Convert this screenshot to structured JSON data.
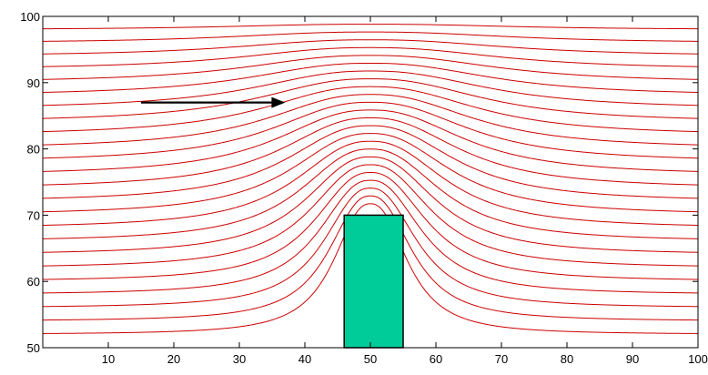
{
  "chart_data": {
    "type": "line",
    "title": "",
    "xlabel": "",
    "ylabel": "",
    "xlim": [
      0,
      100
    ],
    "ylim": [
      50,
      100
    ],
    "x_ticks": [
      10,
      20,
      30,
      40,
      50,
      60,
      70,
      80,
      90,
      100
    ],
    "y_ticks": [
      50,
      60,
      70,
      80,
      90,
      100
    ],
    "grid": false,
    "legend": "none",
    "series": [
      {
        "kind": "streamlines",
        "color": "#cc0000",
        "upstream_y": [
          52,
          54,
          56,
          58,
          60,
          62,
          64,
          66,
          68,
          70,
          72,
          74,
          76,
          78,
          80,
          82,
          84,
          86,
          88,
          90,
          92,
          94,
          96,
          98,
          100
        ],
        "crest_x": 50
      }
    ],
    "annotations": [
      {
        "kind": "obstacle",
        "shape": "rectangle",
        "x": [
          46,
          55
        ],
        "y": [
          50,
          70
        ],
        "color": "#00cc99"
      },
      {
        "kind": "arrow",
        "x_start": 15,
        "x_end": 37,
        "y": 87,
        "color": "#000000"
      }
    ]
  }
}
